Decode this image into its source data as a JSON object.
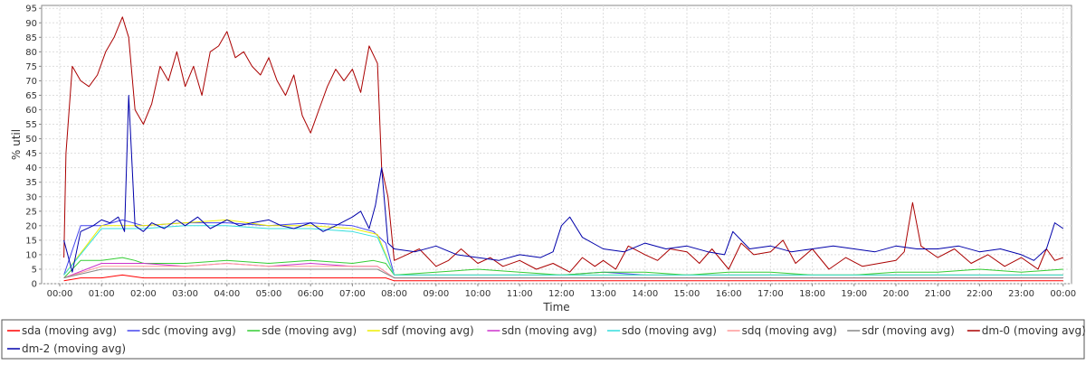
{
  "chart_data": {
    "type": "line",
    "title": "",
    "xlabel": "Time",
    "ylabel": "% util",
    "ylim": [
      0,
      96
    ],
    "xlim": [
      0,
      24.2
    ],
    "yticks": [
      0,
      5,
      10,
      15,
      20,
      25,
      30,
      35,
      40,
      45,
      50,
      55,
      60,
      65,
      70,
      75,
      80,
      85,
      90,
      95
    ],
    "x_tick_labels": [
      "00:00",
      "01:00",
      "02:00",
      "03:00",
      "04:00",
      "05:00",
      "06:00",
      "07:00",
      "08:00",
      "09:00",
      "10:00",
      "11:00",
      "12:00",
      "13:00",
      "14:00",
      "15:00",
      "16:00",
      "17:00",
      "18:00",
      "19:00",
      "20:00",
      "21:00",
      "22:00",
      "23:00",
      "00:00"
    ],
    "grid": true,
    "legend_position": "bottom",
    "series": [
      {
        "name": "sda (moving avg)",
        "color": "#ff0000",
        "x": [
          0.1,
          0.5,
          1.0,
          1.5,
          2.0,
          3.0,
          4.0,
          5.0,
          6.0,
          7.0,
          7.5,
          7.8,
          8.0,
          9.0,
          10.0,
          12.0,
          14.0,
          16.0,
          18.0,
          20.0,
          22.0,
          24.0
        ],
        "y": [
          1,
          2,
          2,
          3,
          2,
          2,
          2,
          2,
          2,
          2,
          2,
          2,
          1,
          1,
          1,
          1,
          1,
          1,
          1,
          1,
          1,
          1
        ]
      },
      {
        "name": "sdc (moving avg)",
        "color": "#4444ee",
        "x": [
          0.1,
          0.5,
          1.0,
          1.5,
          2.0,
          3.0,
          4.0,
          5.0,
          6.0,
          7.0,
          7.5,
          7.8,
          8.0,
          9.0,
          10.0,
          11.0,
          12.0,
          13.0,
          14.0,
          15.0,
          16.0,
          17.0,
          18.0,
          19.0,
          20.0,
          21.0,
          22.0,
          23.0,
          24.0
        ],
        "y": [
          3,
          20,
          20,
          22,
          20,
          21,
          21,
          20,
          21,
          20,
          18,
          14,
          3,
          3,
          3,
          3,
          3,
          4,
          3,
          3,
          3,
          3,
          3,
          3,
          3,
          3,
          3,
          3,
          3
        ]
      },
      {
        "name": "sde (moving avg)",
        "color": "#33cc33",
        "x": [
          0.1,
          0.5,
          1.0,
          1.5,
          1.8,
          2.0,
          3.0,
          4.0,
          5.0,
          6.0,
          7.0,
          7.5,
          7.8,
          8.0,
          9.0,
          10.0,
          11.0,
          12.0,
          13.0,
          14.0,
          15.0,
          16.0,
          17.0,
          18.0,
          19.0,
          20.0,
          21.0,
          22.0,
          23.0,
          24.0
        ],
        "y": [
          2,
          8,
          8,
          9,
          8,
          7,
          7,
          8,
          7,
          8,
          7,
          8,
          7,
          3,
          4,
          5,
          4,
          3,
          4,
          4,
          3,
          4,
          4,
          3,
          3,
          4,
          4,
          5,
          4,
          5
        ]
      },
      {
        "name": "sdf (moving avg)",
        "color": "#eeee00",
        "x": [
          0.1,
          1.0,
          2.0,
          3.0,
          4.0,
          5.0,
          6.0,
          7.0,
          7.6,
          8.0,
          10.0,
          12.0,
          14.0,
          16.0,
          18.0,
          20.0,
          22.0,
          24.0
        ],
        "y": [
          3,
          20,
          20,
          21,
          22,
          20,
          20,
          19,
          17,
          3,
          3,
          3,
          3,
          3,
          3,
          3,
          3,
          3
        ]
      },
      {
        "name": "sdn (moving avg)",
        "color": "#cc33cc",
        "x": [
          0.1,
          1.0,
          2.0,
          3.0,
          4.0,
          5.0,
          6.0,
          7.0,
          7.6,
          8.0,
          10.0,
          12.0,
          14.0,
          16.0,
          18.0,
          20.0,
          22.0,
          24.0
        ],
        "y": [
          2,
          7,
          7,
          6,
          7,
          6,
          7,
          6,
          6,
          2,
          2,
          2,
          2,
          2,
          2,
          2,
          2,
          2
        ]
      },
      {
        "name": "sdo (moving avg)",
        "color": "#33dddd",
        "x": [
          0.1,
          1.0,
          2.0,
          3.0,
          4.0,
          5.0,
          6.0,
          7.0,
          7.6,
          8.0,
          10.0,
          12.0,
          14.0,
          16.0,
          18.0,
          20.0,
          22.0,
          24.0
        ],
        "y": [
          3,
          19,
          19,
          20,
          20,
          19,
          19,
          18,
          16,
          3,
          3,
          3,
          3,
          3,
          3,
          3,
          3,
          3
        ]
      },
      {
        "name": "sdq (moving avg)",
        "color": "#ff9999",
        "x": [
          0.1,
          1.0,
          2.0,
          3.0,
          4.0,
          5.0,
          6.0,
          7.0,
          7.6,
          8.0,
          10.0,
          12.0,
          14.0,
          16.0,
          18.0,
          20.0,
          22.0,
          24.0
        ],
        "y": [
          2,
          6,
          6,
          6,
          7,
          6,
          6,
          6,
          6,
          2,
          2,
          2,
          2,
          2,
          2,
          2,
          2,
          2
        ]
      },
      {
        "name": "sdr (moving avg)",
        "color": "#888888",
        "x": [
          0.1,
          1.0,
          2.0,
          3.0,
          4.0,
          5.0,
          6.0,
          7.0,
          7.6,
          8.0,
          10.0,
          12.0,
          14.0,
          16.0,
          18.0,
          20.0,
          22.0,
          24.0
        ],
        "y": [
          2,
          5,
          5,
          5,
          5,
          5,
          5,
          5,
          5,
          2,
          2,
          2,
          2,
          2,
          2,
          2,
          2,
          2
        ]
      },
      {
        "name": "dm-0 (moving avg)",
        "color": "#aa0000",
        "x": [
          0.1,
          0.15,
          0.3,
          0.5,
          0.7,
          0.9,
          1.1,
          1.3,
          1.5,
          1.65,
          1.8,
          2.0,
          2.2,
          2.4,
          2.6,
          2.8,
          3.0,
          3.2,
          3.4,
          3.6,
          3.8,
          4.0,
          4.2,
          4.4,
          4.6,
          4.8,
          5.0,
          5.2,
          5.4,
          5.6,
          5.8,
          6.0,
          6.2,
          6.4,
          6.6,
          6.8,
          7.0,
          7.2,
          7.4,
          7.6,
          7.7,
          7.85,
          8.0,
          8.3,
          8.6,
          9.0,
          9.3,
          9.6,
          10.0,
          10.3,
          10.6,
          11.0,
          11.4,
          11.8,
          12.2,
          12.5,
          12.8,
          13.0,
          13.3,
          13.6,
          14.0,
          14.3,
          14.6,
          15.0,
          15.3,
          15.6,
          16.0,
          16.3,
          16.6,
          17.0,
          17.3,
          17.6,
          18.0,
          18.4,
          18.8,
          19.2,
          19.6,
          20.0,
          20.2,
          20.4,
          20.6,
          21.0,
          21.4,
          21.8,
          22.2,
          22.6,
          23.0,
          23.4,
          23.6,
          23.8,
          24.0
        ],
        "y": [
          9,
          45,
          75,
          70,
          68,
          72,
          80,
          85,
          92,
          85,
          60,
          55,
          62,
          75,
          70,
          80,
          68,
          75,
          65,
          80,
          82,
          87,
          78,
          80,
          75,
          72,
          78,
          70,
          65,
          72,
          58,
          52,
          60,
          68,
          74,
          70,
          74,
          66,
          82,
          76,
          40,
          30,
          8,
          10,
          12,
          6,
          8,
          12,
          7,
          9,
          6,
          8,
          5,
          7,
          4,
          9,
          6,
          8,
          5,
          13,
          10,
          8,
          12,
          11,
          7,
          12,
          5,
          14,
          10,
          11,
          15,
          7,
          12,
          5,
          9,
          6,
          7,
          8,
          11,
          28,
          13,
          9,
          12,
          7,
          10,
          6,
          9,
          5,
          12,
          8,
          9
        ]
      },
      {
        "name": "dm-2 (moving avg)",
        "color": "#0000aa",
        "x": [
          0.1,
          0.3,
          0.5,
          0.8,
          1.0,
          1.2,
          1.4,
          1.55,
          1.65,
          1.8,
          2.0,
          2.2,
          2.5,
          2.8,
          3.0,
          3.3,
          3.6,
          4.0,
          4.3,
          4.6,
          5.0,
          5.3,
          5.6,
          6.0,
          6.3,
          6.6,
          7.0,
          7.2,
          7.4,
          7.55,
          7.7,
          7.85,
          8.0,
          8.5,
          9.0,
          9.5,
          10.0,
          10.5,
          11.0,
          11.5,
          11.8,
          12.0,
          12.2,
          12.5,
          13.0,
          13.5,
          14.0,
          14.5,
          15.0,
          15.5,
          15.9,
          16.1,
          16.5,
          17.0,
          17.5,
          18.0,
          18.5,
          19.0,
          19.5,
          20.0,
          20.5,
          21.0,
          21.5,
          22.0,
          22.5,
          23.0,
          23.3,
          23.6,
          23.8,
          24.0
        ],
        "y": [
          15,
          4,
          18,
          20,
          22,
          21,
          23,
          18,
          65,
          20,
          18,
          21,
          19,
          22,
          20,
          23,
          19,
          22,
          20,
          21,
          22,
          20,
          19,
          21,
          18,
          20,
          23,
          25,
          19,
          27,
          40,
          14,
          12,
          11,
          13,
          10,
          9,
          8,
          10,
          9,
          11,
          20,
          23,
          16,
          12,
          11,
          14,
          12,
          13,
          11,
          10,
          18,
          12,
          13,
          11,
          12,
          13,
          12,
          11,
          13,
          12,
          12,
          13,
          11,
          12,
          10,
          8,
          12,
          21,
          19
        ]
      }
    ]
  }
}
